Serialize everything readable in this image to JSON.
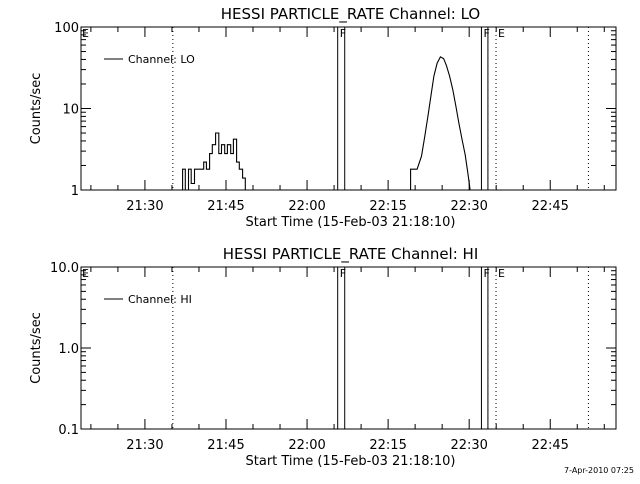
{
  "chart_data": [
    {
      "type": "line",
      "title": "HESSI PARTICLE_RATE Channel: LO",
      "xlabel": "Start Time (15-Feb-03 21:18:10)",
      "ylabel": "Counts/sec",
      "yscale": "log",
      "ylim": [
        1,
        100
      ],
      "yticks": [
        "1",
        "10",
        "100"
      ],
      "xlim_min_after_start": [
        0,
        99
      ],
      "xticks": [
        "21:30",
        "21:45",
        "22:00",
        "22:15",
        "22:30",
        "22:45"
      ],
      "legend": "Channel: LO",
      "legend_placement": "top-left",
      "grid": false,
      "markers": [
        {
          "label": "E",
          "t": 0,
          "style": "text"
        },
        {
          "label": "",
          "t": 17,
          "style": "dotted"
        },
        {
          "label": "F",
          "t": 47.5,
          "style": "solid"
        },
        {
          "label": "",
          "t": 48.8,
          "style": "solid"
        },
        {
          "label": "F",
          "t": 74.1,
          "style": "solid"
        },
        {
          "label": "",
          "t": 75.3,
          "style": "solid"
        },
        {
          "label": "E",
          "t": 76.8,
          "style": "dotted"
        },
        {
          "label": "",
          "t": 93.9,
          "style": "dotted"
        }
      ],
      "series": [
        {
          "name": "Channel: LO",
          "color": "#000000",
          "segments": [
            [
              [
                18.8,
                1
              ],
              [
                18.8,
                1.8
              ],
              [
                19.3,
                1.8
              ],
              [
                19.3,
                1
              ],
              [
                19.9,
                1
              ],
              [
                19.9,
                1.8
              ],
              [
                20.4,
                1.8
              ],
              [
                20.4,
                1.2
              ],
              [
                21.0,
                1.2
              ],
              [
                21.0,
                1.8
              ],
              [
                22.7,
                1.8
              ],
              [
                22.7,
                2.2
              ],
              [
                23.2,
                2.2
              ],
              [
                23.2,
                1.8
              ],
              [
                23.8,
                1.8
              ],
              [
                23.8,
                2.8
              ],
              [
                24.3,
                2.8
              ],
              [
                24.3,
                3.6
              ],
              [
                24.9,
                3.6
              ],
              [
                24.9,
                5.0
              ],
              [
                25.5,
                5.0
              ],
              [
                25.5,
                2.8
              ],
              [
                26.0,
                2.8
              ],
              [
                26.0,
                3.6
              ],
              [
                26.6,
                3.6
              ],
              [
                26.6,
                2.8
              ],
              [
                27.1,
                2.8
              ],
              [
                27.1,
                3.6
              ],
              [
                27.7,
                3.6
              ],
              [
                27.7,
                2.8
              ],
              [
                28.2,
                2.8
              ],
              [
                28.2,
                4.2
              ],
              [
                28.8,
                4.2
              ],
              [
                28.8,
                2.2
              ],
              [
                29.3,
                2.2
              ],
              [
                29.3,
                1.8
              ],
              [
                29.9,
                1.8
              ],
              [
                29.9,
                1.4
              ],
              [
                30.4,
                1.4
              ],
              [
                30.4,
                1
              ]
            ],
            [
              [
                61.0,
                1
              ],
              [
                61.0,
                1.8
              ],
              [
                62.2,
                1.8
              ],
              [
                63.0,
                2.6
              ],
              [
                63.6,
                4.5
              ],
              [
                64.2,
                8
              ],
              [
                64.8,
                15
              ],
              [
                65.3,
                25
              ],
              [
                65.9,
                36
              ],
              [
                66.5,
                43
              ],
              [
                67.1,
                41
              ],
              [
                67.6,
                34
              ],
              [
                68.2,
                25
              ],
              [
                68.8,
                17
              ],
              [
                69.4,
                10.5
              ],
              [
                69.9,
                6.8
              ],
              [
                70.5,
                4.2
              ],
              [
                71.1,
                2.7
              ],
              [
                71.6,
                1.6
              ],
              [
                72.0,
                1
              ]
            ]
          ]
        }
      ]
    },
    {
      "type": "line",
      "title": "HESSI PARTICLE_RATE Channel: HI",
      "xlabel": "Start Time (15-Feb-03 21:18:10)",
      "ylabel": "Counts/sec",
      "yscale": "log",
      "ylim": [
        0.1,
        10
      ],
      "yticks": [
        "0.1",
        "1.0",
        "10.0"
      ],
      "xlim_min_after_start": [
        0,
        99
      ],
      "xticks": [
        "21:30",
        "21:45",
        "22:00",
        "22:15",
        "22:30",
        "22:45"
      ],
      "legend": "Channel: HI",
      "legend_placement": "top-left",
      "grid": false,
      "markers": [
        {
          "label": "E",
          "t": 0,
          "style": "text"
        },
        {
          "label": "",
          "t": 17,
          "style": "dotted"
        },
        {
          "label": "F",
          "t": 47.5,
          "style": "solid"
        },
        {
          "label": "",
          "t": 48.8,
          "style": "solid"
        },
        {
          "label": "F",
          "t": 74.1,
          "style": "solid"
        },
        {
          "label": "",
          "t": 75.3,
          "style": "solid"
        },
        {
          "label": "E",
          "t": 76.8,
          "style": "dotted"
        },
        {
          "label": "",
          "t": 93.9,
          "style": "dotted"
        }
      ],
      "series": [
        {
          "name": "Channel: HI",
          "color": "#000000",
          "segments": []
        }
      ]
    }
  ],
  "footer": {
    "timestamp": "7-Apr-2010 07:25"
  }
}
